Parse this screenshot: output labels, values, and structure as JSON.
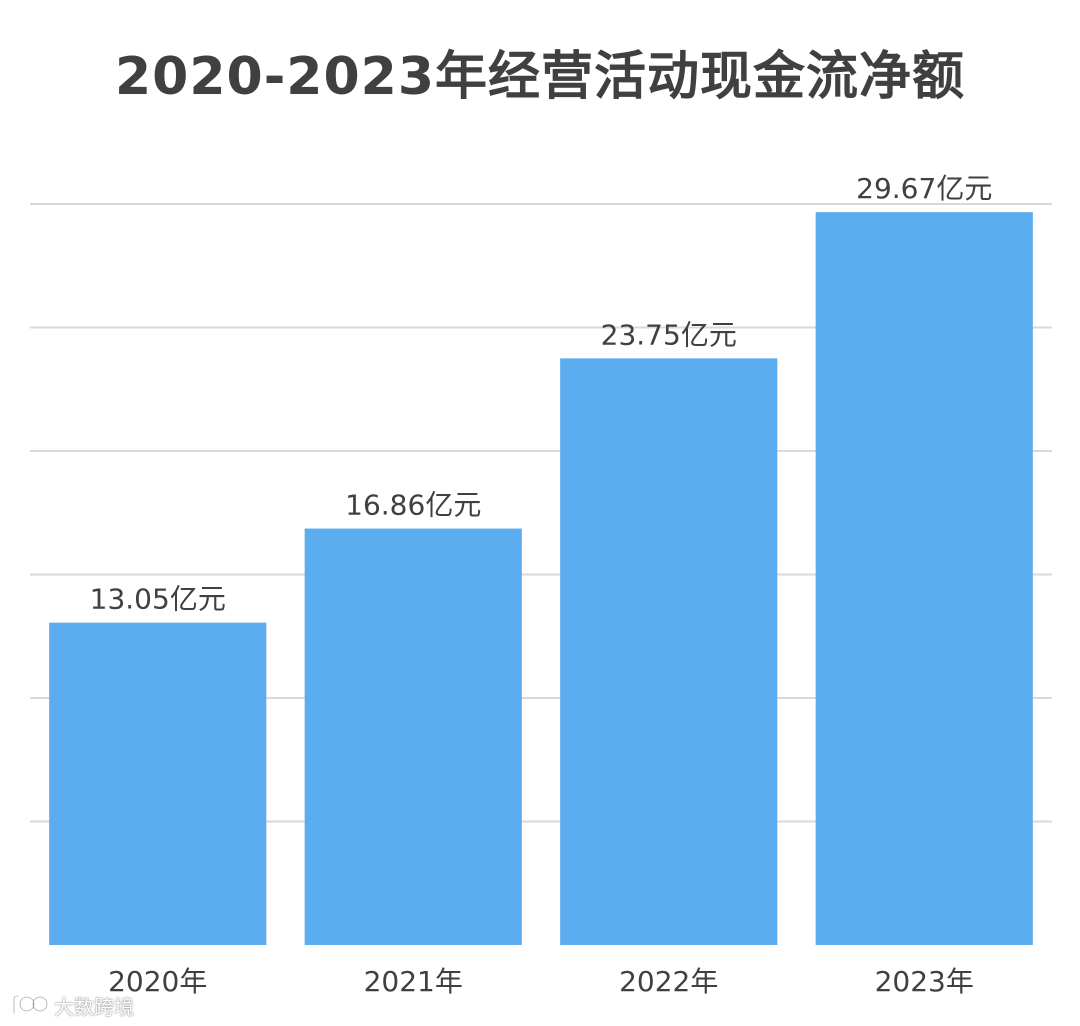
{
  "chart_data": {
    "type": "bar",
    "title": "2020-2023年经营活动现金流净额",
    "categories": [
      "2020年",
      "2021年",
      "2022年",
      "2023年"
    ],
    "values": [
      13.05,
      16.86,
      23.75,
      29.67
    ],
    "data_labels": [
      "13.05亿元",
      "16.86亿元",
      "23.75亿元",
      "29.67亿元"
    ],
    "xlabel": "",
    "ylabel": "",
    "ylim": [
      0,
      30
    ],
    "grid": true,
    "gridline_values": [
      5,
      10,
      15,
      20,
      25,
      30
    ],
    "legend": "none",
    "bar_color": "#5badf0"
  },
  "watermark": {
    "text": "大数跨境",
    "logo": "dashuju-logo-icon"
  }
}
